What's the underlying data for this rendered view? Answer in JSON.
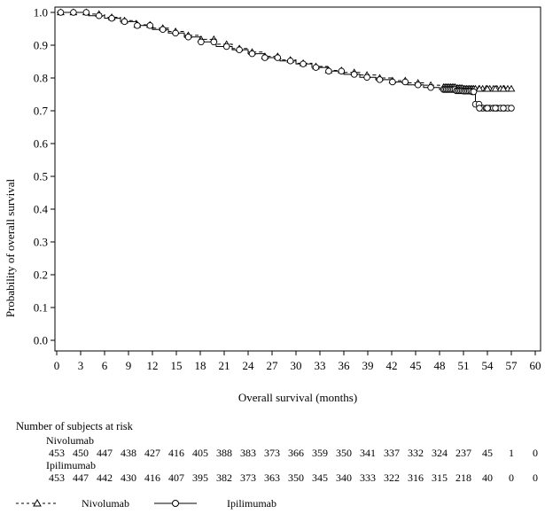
{
  "chart_data": {
    "type": "line",
    "title": "",
    "xlabel": "Overall survival (months)",
    "ylabel": "Probability of overall survival",
    "xlim": [
      0,
      60
    ],
    "ylim": [
      0.0,
      1.0
    ],
    "xticks": [
      "0",
      "3",
      "6",
      "9",
      "12",
      "15",
      "18",
      "21",
      "24",
      "27",
      "30",
      "33",
      "36",
      "39",
      "42",
      "45",
      "48",
      "51",
      "54",
      "57",
      "60"
    ],
    "yticks": [
      "0.0",
      "0.1",
      "0.2",
      "0.3",
      "0.4",
      "0.5",
      "0.6",
      "0.7",
      "0.8",
      "0.9",
      "1.0"
    ],
    "series": [
      {
        "name": "Nivolumab",
        "style": "dashed, triangle censor marks",
        "x": [
          0,
          3,
          4,
          6,
          8,
          10,
          12,
          14,
          16,
          18,
          20,
          22,
          24,
          26,
          28,
          30,
          32,
          34,
          36,
          38,
          40,
          42,
          44,
          46,
          48,
          50,
          51,
          52,
          53,
          54,
          55,
          56,
          57
        ],
        "y": [
          1.0,
          1.0,
          0.995,
          0.985,
          0.975,
          0.962,
          0.952,
          0.942,
          0.93,
          0.918,
          0.903,
          0.89,
          0.879,
          0.866,
          0.855,
          0.845,
          0.835,
          0.823,
          0.817,
          0.809,
          0.8,
          0.792,
          0.785,
          0.778,
          0.772,
          0.769,
          0.767,
          0.767,
          0.767,
          0.767,
          0.767,
          0.767,
          0.767
        ]
      },
      {
        "name": "Ipilimumab",
        "style": "solid, circle censor marks",
        "x": [
          0,
          3,
          4,
          6,
          8,
          10,
          12,
          14,
          16,
          18,
          20,
          22,
          24,
          26,
          28,
          30,
          32,
          34,
          36,
          38,
          40,
          42,
          44,
          46,
          48,
          50,
          51,
          52,
          52.5,
          53,
          54,
          55,
          56,
          57
        ],
        "y": [
          1.0,
          1.0,
          0.99,
          0.982,
          0.972,
          0.96,
          0.948,
          0.937,
          0.925,
          0.91,
          0.896,
          0.886,
          0.874,
          0.862,
          0.852,
          0.843,
          0.832,
          0.821,
          0.811,
          0.802,
          0.795,
          0.788,
          0.779,
          0.771,
          0.765,
          0.761,
          0.76,
          0.758,
          0.72,
          0.708,
          0.708,
          0.708,
          0.708,
          0.708
        ]
      }
    ]
  },
  "risk_table": {
    "title": "Number of subjects at risk",
    "groups": [
      {
        "name": "Nivolumab",
        "values": [
          "453",
          "450",
          "447",
          "438",
          "427",
          "416",
          "405",
          "388",
          "383",
          "373",
          "366",
          "359",
          "350",
          "341",
          "337",
          "332",
          "324",
          "237",
          "45",
          "1",
          "0"
        ]
      },
      {
        "name": "Ipilimumab",
        "values": [
          "453",
          "447",
          "442",
          "430",
          "416",
          "407",
          "395",
          "382",
          "373",
          "363",
          "350",
          "345",
          "340",
          "333",
          "322",
          "316",
          "315",
          "218",
          "40",
          "0",
          "0"
        ]
      }
    ]
  },
  "legend": {
    "items": [
      {
        "label": "Nivolumab",
        "marker": "- - -△- - -"
      },
      {
        "label": "Ipilimumab",
        "marker": "—○—"
      }
    ]
  }
}
